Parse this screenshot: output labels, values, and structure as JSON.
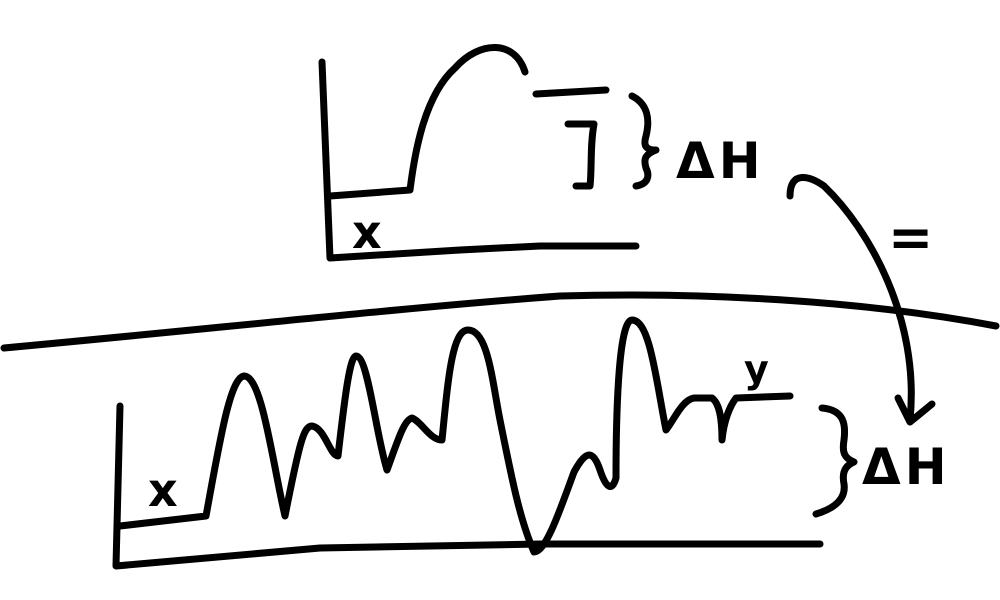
{
  "diagram": {
    "top_panel": {
      "axis_label": "x",
      "delta_label": "ΔH"
    },
    "bottom_panel": {
      "axis_label": "x",
      "end_label": "y",
      "delta_label": "ΔH"
    },
    "relation_symbol": "=",
    "colors": {
      "ink": "#000000",
      "background": "#ffffff"
    }
  }
}
